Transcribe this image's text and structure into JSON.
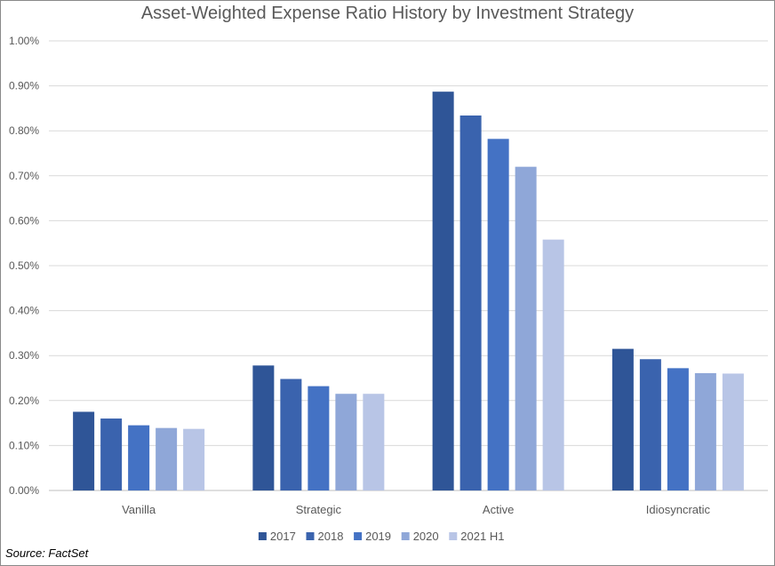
{
  "chart_data": {
    "type": "bar",
    "title": "Asset-Weighted Expense Ratio History by Investment Strategy",
    "categories": [
      "Vanilla",
      "Strategic",
      "Active",
      "Idiosyncratic"
    ],
    "series": [
      {
        "name": "2017",
        "color": "#2f5597",
        "values": [
          0.175,
          0.278,
          0.887,
          0.315
        ]
      },
      {
        "name": "2018",
        "color": "#3a63ae",
        "values": [
          0.16,
          0.248,
          0.834,
          0.292
        ]
      },
      {
        "name": "2019",
        "color": "#4472c4",
        "values": [
          0.145,
          0.232,
          0.782,
          0.272
        ]
      },
      {
        "name": "2020",
        "color": "#8fa7d8",
        "values": [
          0.139,
          0.215,
          0.72,
          0.261
        ]
      },
      {
        "name": "2021 H1",
        "color": "#b8c5e6",
        "values": [
          0.137,
          0.215,
          0.558,
          0.26
        ]
      }
    ],
    "yticks": [
      "0.00%",
      "0.10%",
      "0.20%",
      "0.30%",
      "0.40%",
      "0.50%",
      "0.60%",
      "0.70%",
      "0.80%",
      "0.90%",
      "1.00%"
    ],
    "ylim": [
      0,
      1.0
    ],
    "grid": true,
    "legend_position": "bottom",
    "source": "Source: FactSet"
  }
}
